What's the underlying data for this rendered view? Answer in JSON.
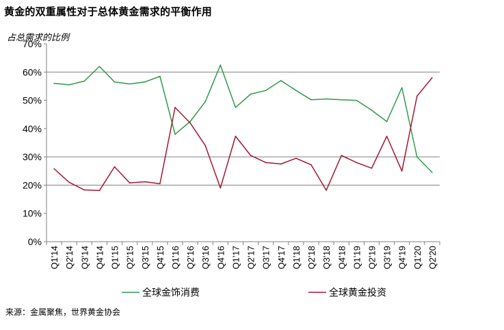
{
  "title": "黄金的双重属性对于总体黄金需求的平衡作用",
  "subtitle": "占总需求的比例",
  "source": "来源：金属聚焦，世界黄金协会",
  "chart_data": {
    "type": "line",
    "categories": [
      "Q1'14",
      "Q2'14",
      "Q3'14",
      "Q4'14",
      "Q1'15",
      "Q2'15",
      "Q3'15",
      "Q4'15",
      "Q1'16",
      "Q2'16",
      "Q3'16",
      "Q4'16",
      "Q1'17",
      "Q2'17",
      "Q3'17",
      "Q4'17",
      "Q1'18",
      "Q2'18",
      "Q3'18",
      "Q4'18",
      "Q1'19",
      "Q2'19",
      "Q3'19",
      "Q4'19",
      "Q1'20",
      "Q2'20"
    ],
    "series": [
      {
        "name": "全球金饰消费",
        "color": "#2e9a48",
        "values": [
          56,
          55.5,
          56.8,
          62,
          56.5,
          55.8,
          56.5,
          58.5,
          38,
          42.5,
          49.5,
          62.5,
          47.5,
          52.2,
          53.5,
          57,
          53.5,
          50.2,
          50.5,
          50.2,
          50,
          46.5,
          42.5,
          54.5,
          30,
          24.5
        ]
      },
      {
        "name": "全球黄金投资",
        "color": "#a3162d",
        "values": [
          25.8,
          21,
          18.3,
          18.1,
          26.5,
          20.8,
          21.2,
          20.5,
          47.5,
          42,
          34,
          19,
          37.3,
          30.5,
          28,
          27.5,
          29.5,
          27.2,
          18.2,
          30.5,
          28,
          26,
          37.3,
          25,
          51.5,
          58
        ]
      }
    ],
    "ylim": [
      0,
      70
    ],
    "yticks": [
      0,
      10,
      20,
      30,
      40,
      50,
      60,
      70
    ],
    "ytick_labels": [
      "0%",
      "10%",
      "20%",
      "30%",
      "40%",
      "50%",
      "60%",
      "70%"
    ],
    "gridlines": [
      20,
      30,
      60
    ],
    "legend_position": "bottom"
  }
}
